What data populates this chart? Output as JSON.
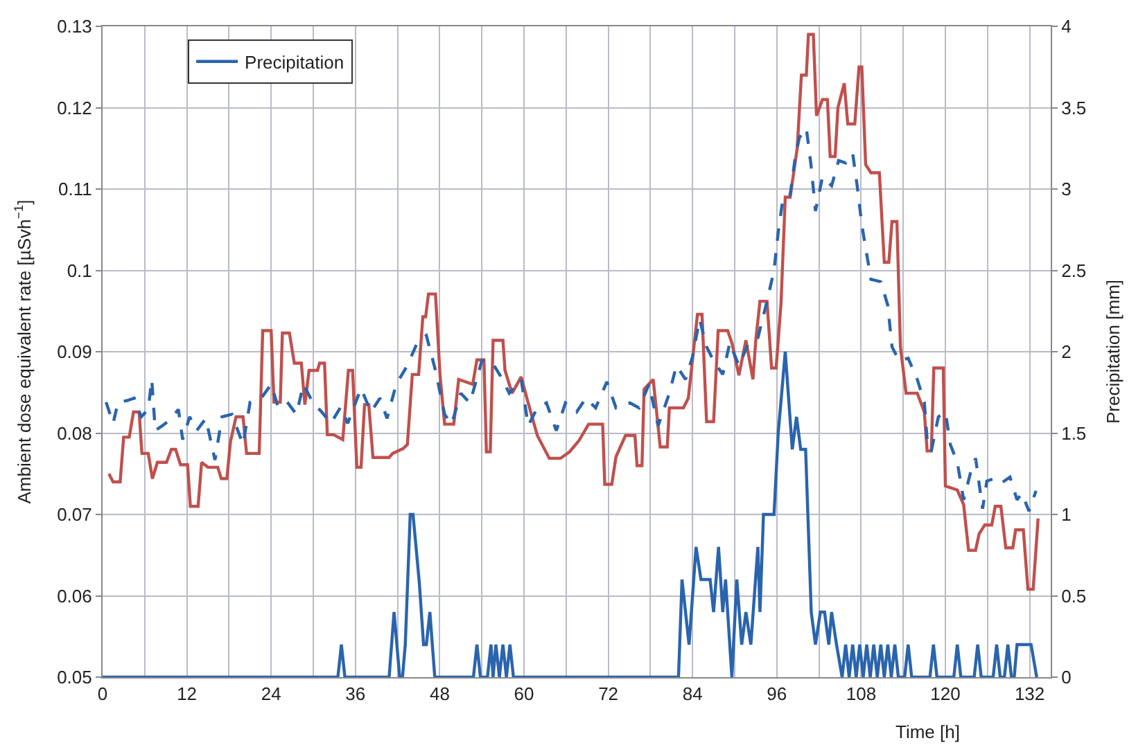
{
  "chart_data": {
    "type": "line",
    "xlabel": "Time [h]",
    "ylabel": "Ambient dose equivalent rate [µSvh$^{−1}$]",
    "y2label": "Precipitation [mm]",
    "xlim": [
      0,
      135
    ],
    "xticks": [
      0,
      {
        "value": 6,
        "label": null
      },
      12,
      {
        "value": 18,
        "label": null
      },
      24,
      {
        "value": 30,
        "label": null
      },
      36,
      {
        "value": 42,
        "label": null
      },
      48,
      {
        "value": 54,
        "label": null
      },
      60,
      {
        "value": 66,
        "label": null
      },
      72,
      {
        "value": 78,
        "label": null
      },
      84,
      {
        "value": 90,
        "label": null
      },
      96,
      {
        "value": 102,
        "label": null
      },
      108,
      {
        "value": 114,
        "label": null
      },
      120,
      {
        "value": 126,
        "label": null
      },
      132
    ],
    "ylim": [
      0.05,
      0.13
    ],
    "yticks": [
      0.05,
      0.06,
      0.07,
      0.08,
      0.09,
      {
        "value": 0.1,
        "label": "0.1"
      },
      0.11,
      0.12,
      0.13
    ],
    "y2lim": [
      0,
      4
    ],
    "y2ticks": [
      0,
      0.5,
      1,
      1.5,
      2,
      2.5,
      3,
      3.5,
      4
    ],
    "grid": true,
    "legend": "top left",
    "marker": "none",
    "series": [
      {
        "color": "#c0504d",
        "line_style": "solid",
        "x": [
          0.9,
          1.5,
          2.5,
          3,
          3.8,
          4.4,
          5.2,
          5.6,
          6.5,
          7.1,
          7.8,
          9.1,
          9.8,
          10.4,
          11.1,
          12.1,
          12.5,
          13.6,
          14.1,
          15,
          16.4,
          16.9,
          17.7,
          18.2,
          19,
          20,
          20.5,
          22.3,
          22.8,
          24,
          24.4,
          25.3,
          25.6,
          26.6,
          27.3,
          28.3,
          28.8,
          29.4,
          30.6,
          30.9,
          31.6,
          32,
          32.9,
          34.2,
          35,
          35.6,
          36.2,
          36.8,
          37.3,
          37.9,
          38.5,
          40.8,
          41.3,
          42.8,
          43.4,
          44.1,
          45,
          45.6,
          46,
          46.4,
          47.4,
          48.05,
          48.7,
          50,
          50.7,
          52.7,
          53.3,
          54.3,
          54.65,
          55.2,
          55.6,
          57,
          57.3,
          58.3,
          59.6,
          60.6,
          61.9,
          63.6,
          65.2,
          66.5,
          67.85,
          69.2,
          71.2,
          71.5,
          72.5,
          73.1,
          74.45,
          75.8,
          76.1,
          76.8,
          77.1,
          78.4,
          79.4,
          80.4,
          80.7,
          82.7,
          83.4,
          84.7,
          85.35,
          86,
          87,
          87.65,
          89,
          89.6,
          90.6,
          91.6,
          92.6,
          93,
          93.6,
          94.6,
          95.25,
          95.9,
          96.6,
          97.2,
          97.9,
          98.9,
          99.5,
          100.2,
          100.5,
          101.2,
          101.65,
          102.5,
          103.2,
          103.6,
          104.3,
          104.7,
          105.6,
          106.1,
          107.1,
          107.7,
          108.1,
          108.65,
          109.4,
          110.6,
          111.3,
          111.95,
          112.4,
          113.1,
          113.6,
          114.4,
          116,
          117,
          117.4,
          118,
          118.35,
          119.7,
          120,
          121.7,
          122.6,
          123.3,
          124.3,
          124.8,
          125.6,
          126.6,
          127.1,
          127.9,
          128.6,
          129.6,
          130,
          131.1,
          131.75,
          132.5,
          133.2
        ],
        "values": [
          0.075,
          0.074,
          0.074,
          0.0795,
          0.0795,
          0.0826,
          0.0826,
          0.0775,
          0.0775,
          0.0744,
          0.0764,
          0.0764,
          0.078,
          0.078,
          0.0761,
          0.0761,
          0.071,
          0.071,
          0.0764,
          0.0758,
          0.0758,
          0.0744,
          0.0744,
          0.0789,
          0.082,
          0.082,
          0.0775,
          0.0775,
          0.0926,
          0.0926,
          0.0838,
          0.0838,
          0.0923,
          0.0923,
          0.0886,
          0.0886,
          0.0835,
          0.0877,
          0.0877,
          0.0886,
          0.0886,
          0.0798,
          0.0798,
          0.0792,
          0.0877,
          0.0877,
          0.0758,
          0.0758,
          0.0835,
          0.0835,
          0.077,
          0.077,
          0.0775,
          0.0781,
          0.0786,
          0.0872,
          0.0872,
          0.0943,
          0.0943,
          0.0971,
          0.0971,
          0.0871,
          0.0811,
          0.0811,
          0.0866,
          0.086,
          0.089,
          0.089,
          0.0777,
          0.0777,
          0.0914,
          0.0914,
          0.0877,
          0.0849,
          0.0869,
          0.0837,
          0.0797,
          0.0769,
          0.0769,
          0.0777,
          0.0791,
          0.0811,
          0.0811,
          0.0737,
          0.0737,
          0.0771,
          0.0797,
          0.0797,
          0.076,
          0.076,
          0.0854,
          0.0866,
          0.0783,
          0.0783,
          0.0831,
          0.0831,
          0.0843,
          0.0946,
          0.0946,
          0.0814,
          0.0814,
          0.0926,
          0.0926,
          0.0911,
          0.0871,
          0.0914,
          0.0866,
          0.0914,
          0.0962,
          0.0962,
          0.088,
          0.088,
          0.096,
          0.109,
          0.109,
          0.115,
          0.124,
          0.124,
          0.129,
          0.129,
          0.119,
          0.121,
          0.121,
          0.114,
          0.114,
          0.12,
          0.123,
          0.118,
          0.118,
          0.125,
          0.125,
          0.113,
          0.112,
          0.112,
          0.101,
          0.101,
          0.106,
          0.106,
          0.0906,
          0.0849,
          0.0849,
          0.0826,
          0.0778,
          0.0778,
          0.088,
          0.088,
          0.0735,
          0.073,
          0.0712,
          0.0656,
          0.0656,
          0.0676,
          0.0687,
          0.0687,
          0.071,
          0.071,
          0.0659,
          0.0659,
          0.0681,
          0.0681,
          0.0608,
          0.0608,
          0.0695
        ]
      },
      {
        "color": "#2a64ad",
        "line_style": "dashed",
        "x": [
          0.5,
          1.5,
          2.2,
          3.5,
          4.5,
          5.5,
          6.5,
          7,
          7.5,
          8.5,
          9.4,
          10.8,
          11.4,
          12.4,
          13.4,
          14.7,
          16,
          17,
          18.4,
          20,
          21,
          22.6,
          24,
          25,
          26.3,
          27.6,
          28.6,
          29.9,
          31.2,
          32.5,
          33.9,
          34.9,
          36.8,
          38.2,
          39.5,
          40.5,
          41.8,
          43.4,
          44.8,
          46.1,
          47.4,
          48.7,
          49.7,
          51,
          52.3,
          54,
          55.3,
          56.6,
          57.9,
          59.6,
          60.6,
          61.9,
          63.2,
          64.6,
          65.9,
          67.5,
          68.8,
          70.2,
          71.8,
          73.1,
          75.1,
          76.4,
          77.8,
          79.1,
          80.7,
          81.7,
          83,
          84,
          85,
          86,
          87,
          88.3,
          89.3,
          90.6,
          92,
          93.3,
          94.6,
          95.6,
          96.2,
          96.9,
          97.9,
          98.6,
          99.2,
          100.2,
          100.9,
          101.5,
          102.5,
          103.8,
          104.8,
          105.8,
          106.8,
          107.5,
          108.1,
          109.4,
          110.8,
          111.8,
          112.4,
          113.4,
          114.7,
          116,
          117,
          117.4,
          118,
          119,
          120,
          120.7,
          121.7,
          122.6,
          123.6,
          124.3,
          125.3,
          125.9,
          126.9,
          127.9,
          129.2,
          130.2,
          130.9,
          131.9,
          132.9
        ],
        "values": [
          0.0838,
          0.0812,
          0.0838,
          0.084,
          0.0843,
          0.082,
          0.0829,
          0.0866,
          0.0803,
          0.0809,
          0.0815,
          0.0829,
          0.0792,
          0.082,
          0.0803,
          0.0818,
          0.0767,
          0.082,
          0.0823,
          0.0786,
          0.0838,
          0.0843,
          0.086,
          0.0832,
          0.0838,
          0.0823,
          0.086,
          0.0838,
          0.0826,
          0.0812,
          0.0832,
          0.0812,
          0.0855,
          0.0826,
          0.0843,
          0.0818,
          0.086,
          0.0883,
          0.0911,
          0.092,
          0.0877,
          0.0823,
          0.0811,
          0.0849,
          0.0837,
          0.0889,
          0.0889,
          0.0871,
          0.0849,
          0.0866,
          0.0809,
          0.0831,
          0.0837,
          0.0803,
          0.0837,
          0.0826,
          0.0843,
          0.0831,
          0.0863,
          0.0831,
          0.0837,
          0.0831,
          0.086,
          0.0809,
          0.0849,
          0.0883,
          0.0866,
          0.0894,
          0.094,
          0.0906,
          0.0889,
          0.0872,
          0.0911,
          0.0883,
          0.0911,
          0.0917,
          0.0962,
          0.1,
          0.1047,
          0.109,
          0.1093,
          0.1138,
          0.1163,
          0.1175,
          0.1127,
          0.1073,
          0.1115,
          0.1104,
          0.1135,
          0.1132,
          0.1144,
          0.11,
          0.1056,
          0.0989,
          0.0986,
          0.0957,
          0.0906,
          0.0889,
          0.0892,
          0.0866,
          0.0838,
          0.0792,
          0.0778,
          0.082,
          0.0826,
          0.0786,
          0.0764,
          0.0718,
          0.0752,
          0.0769,
          0.0707,
          0.0741,
          0.0744,
          0.0738,
          0.0746,
          0.0718,
          0.0726,
          0.0704,
          0.0729
        ]
      },
      {
        "name": "Precipitation",
        "color": "#2a64ad",
        "line_style": "solid",
        "axis": "y2",
        "x": [
          0,
          33.5,
          34,
          34.5,
          40.8,
          41.5,
          42.3,
          42.7,
          43.1,
          43.8,
          44.2,
          45.1,
          45.7,
          46.1,
          46.6,
          47.3,
          52.8,
          53.3,
          53.8,
          54.8,
          55.3,
          55.6,
          56,
          56.5,
          57,
          57.5,
          58,
          58.5,
          82,
          82.5,
          83.5,
          84.5,
          85.2,
          86.5,
          87,
          87.7,
          88.3,
          88.7,
          89.6,
          90.3,
          91,
          91.6,
          92.3,
          93.3,
          93.6,
          94.1,
          94.8,
          95.6,
          96.2,
          97.2,
          98.2,
          98.8,
          99.4,
          100.1,
          100.9,
          101.5,
          102.2,
          102.8,
          103.4,
          103.8,
          104.5,
          105.3,
          105.8,
          106.3,
          106.8,
          107.3,
          107.8,
          108.3,
          108.8,
          109.3,
          109.8,
          110.3,
          110.8,
          111.3,
          111.8,
          112.3,
          112.8,
          113.3,
          114.2,
          114.7,
          115.2,
          117.8,
          118.3,
          118.8,
          121.2,
          121.7,
          122.2,
          124.1,
          124.6,
          125.1,
          126.8,
          127.3,
          127.8,
          128.4,
          128.9,
          129.4,
          129.8,
          130.2,
          132.2,
          133
        ],
        "values": [
          0,
          0,
          0.2,
          0,
          0,
          0.4,
          0,
          0,
          0.2,
          1,
          1,
          0.58,
          0.2,
          0.2,
          0.4,
          0,
          0,
          0.2,
          0,
          0,
          0.2,
          0,
          0.2,
          0,
          0.2,
          0,
          0.2,
          0,
          0,
          0.6,
          0.2,
          0.8,
          0.6,
          0.6,
          0.4,
          0.8,
          0.4,
          0.6,
          0,
          0.6,
          0.2,
          0.4,
          0.2,
          0.8,
          0.4,
          1,
          1,
          1,
          1.5,
          2,
          1.4,
          1.6,
          1.4,
          1.4,
          0.4,
          0.2,
          0.4,
          0.4,
          0.2,
          0.4,
          0.2,
          0,
          0.2,
          0,
          0.2,
          0,
          0.2,
          0,
          0.2,
          0,
          0.2,
          0,
          0.2,
          0,
          0.2,
          0,
          0.2,
          0,
          0,
          0.2,
          0,
          0,
          0.2,
          0,
          0,
          0.2,
          0,
          0,
          0.2,
          0,
          0,
          0.2,
          0,
          0,
          0.2,
          0,
          0,
          0.2,
          0.2,
          0
        ]
      }
    ]
  }
}
